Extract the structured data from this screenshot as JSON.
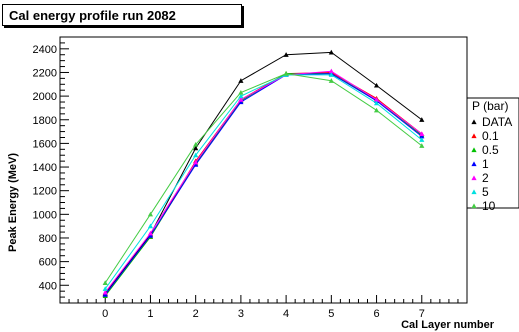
{
  "chart_data": {
    "type": "line",
    "title": "Cal energy profile run 2082",
    "xlabel": "Cal Layer number",
    "ylabel": "Peak Energy (MeV)",
    "x": [
      0,
      1,
      2,
      3,
      4,
      5,
      6,
      7
    ],
    "xlim": [
      -1,
      8
    ],
    "ylim": [
      250,
      2500
    ],
    "xticks": [
      0,
      1,
      2,
      3,
      4,
      5,
      6,
      7
    ],
    "yticks": [
      400,
      600,
      800,
      1000,
      1200,
      1400,
      1600,
      1800,
      2000,
      2200,
      2400
    ],
    "legend_title": "P (bar)",
    "legend_position": "right",
    "series": [
      {
        "name": "DATA",
        "color": "#000000",
        "values": [
          330,
          830,
          1560,
          2130,
          2350,
          2370,
          2090,
          1800
        ]
      },
      {
        "name": "0.1",
        "color": "#ff0000",
        "values": [
          320,
          810,
          1450,
          1970,
          2190,
          2200,
          1980,
          1680
        ]
      },
      {
        "name": "0.5",
        "color": "#00c000",
        "values": [
          310,
          810,
          1430,
          1960,
          2190,
          2190,
          1970,
          1670
        ]
      },
      {
        "name": "1",
        "color": "#0000ff",
        "values": [
          320,
          820,
          1420,
          1950,
          2180,
          2190,
          1960,
          1660
        ]
      },
      {
        "name": "2",
        "color": "#ff00ff",
        "values": [
          340,
          840,
          1440,
          1970,
          2180,
          2210,
          1970,
          1680
        ]
      },
      {
        "name": "5",
        "color": "#00e0e0",
        "values": [
          370,
          900,
          1500,
          2000,
          2180,
          2180,
          1940,
          1630
        ]
      },
      {
        "name": "10",
        "color": "#44cc44",
        "values": [
          420,
          1000,
          1590,
          2030,
          2190,
          2130,
          1880,
          1580
        ]
      }
    ]
  }
}
